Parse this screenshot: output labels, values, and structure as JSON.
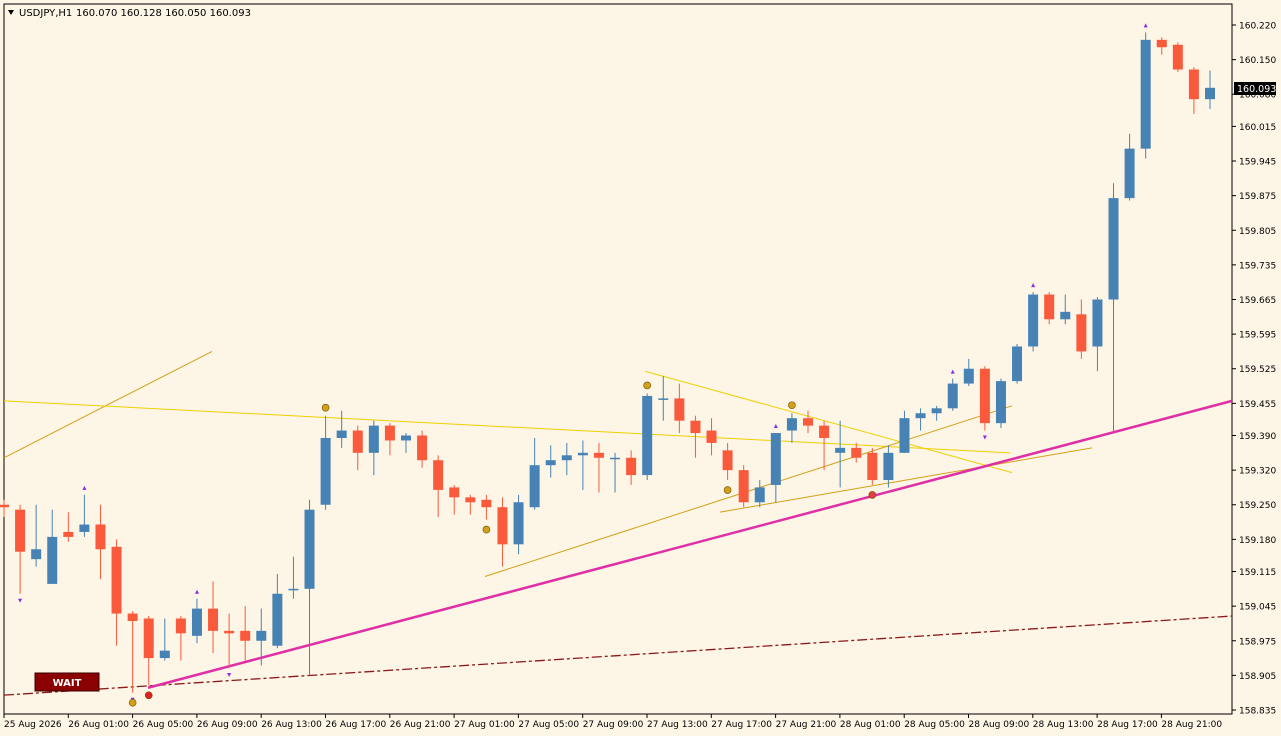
{
  "header": {
    "symbol": "USDJPY,H1",
    "ohlc": "160.070 160.128 160.050 160.093"
  },
  "colors": {
    "background": "#fdf5e6",
    "bull": "#4682b4",
    "bear": "#fa5a3c",
    "wick_bull": "#4682b4",
    "wick_bear": "#fa5a3c",
    "trendline_magenta": "#e02fa6",
    "trendline_gold": "#d4a017",
    "dashed_line": "#8b1a1a",
    "price_tag_bg": "#000000",
    "price_tag_fg": "#ffffff",
    "label_bg": "#8b0000",
    "marker_purple": "#8a2be2"
  },
  "price_tag": "160.093",
  "wait_label": "WAIT",
  "chart_data": {
    "type": "candlestick",
    "title": "USDJPY,H1",
    "timeframe": "H1",
    "ylim": [
      158.835,
      160.22
    ],
    "y_ticks": [
      "160.220",
      "160.150",
      "160.080",
      "160.015",
      "159.945",
      "159.875",
      "159.805",
      "159.735",
      "159.665",
      "159.595",
      "159.525",
      "159.455",
      "159.390",
      "159.320",
      "159.250",
      "159.180",
      "159.115",
      "159.045",
      "158.975",
      "158.905",
      "158.835"
    ],
    "x_tick_labels": [
      "25 Aug 2026",
      "26 Aug 01:00",
      "26 Aug 05:00",
      "26 Aug 09:00",
      "26 Aug 13:00",
      "26 Aug 17:00",
      "26 Aug 21:00",
      "27 Aug 01:00",
      "27 Aug 05:00",
      "27 Aug 09:00",
      "27 Aug 13:00",
      "27 Aug 17:00",
      "27 Aug 21:00",
      "28 Aug 01:00",
      "28 Aug 05:00",
      "28 Aug 09:00",
      "28 Aug 13:00",
      "28 Aug 17:00",
      "28 Aug 21:00"
    ],
    "candles": [
      {
        "o": 159.25,
        "h": 159.26,
        "l": 159.225,
        "c": 159.245
      },
      {
        "o": 159.24,
        "h": 159.25,
        "l": 159.07,
        "c": 159.155
      },
      {
        "o": 159.14,
        "h": 159.25,
        "l": 159.125,
        "c": 159.16
      },
      {
        "o": 159.09,
        "h": 159.24,
        "l": 159.09,
        "c": 159.185
      },
      {
        "o": 159.195,
        "h": 159.235,
        "l": 159.175,
        "c": 159.185
      },
      {
        "o": 159.195,
        "h": 159.27,
        "l": 159.185,
        "c": 159.21
      },
      {
        "o": 159.21,
        "h": 159.25,
        "l": 159.1,
        "c": 159.16
      },
      {
        "o": 159.165,
        "h": 159.18,
        "l": 158.965,
        "c": 159.03
      },
      {
        "o": 159.03,
        "h": 159.035,
        "l": 158.87,
        "c": 159.015
      },
      {
        "o": 159.02,
        "h": 159.025,
        "l": 158.885,
        "c": 158.94
      },
      {
        "o": 158.94,
        "h": 159.02,
        "l": 158.935,
        "c": 158.955
      },
      {
        "o": 159.02,
        "h": 159.025,
        "l": 158.935,
        "c": 158.99
      },
      {
        "o": 158.985,
        "h": 159.06,
        "l": 158.97,
        "c": 159.04
      },
      {
        "o": 159.04,
        "h": 159.095,
        "l": 158.95,
        "c": 158.995
      },
      {
        "o": 158.995,
        "h": 159.03,
        "l": 158.92,
        "c": 158.99
      },
      {
        "o": 158.995,
        "h": 159.045,
        "l": 158.935,
        "c": 158.975
      },
      {
        "o": 158.975,
        "h": 159.04,
        "l": 158.925,
        "c": 158.995
      },
      {
        "o": 158.965,
        "h": 159.11,
        "l": 158.96,
        "c": 159.07
      },
      {
        "o": 159.08,
        "h": 159.145,
        "l": 159.06,
        "c": 159.08
      },
      {
        "o": 159.08,
        "h": 159.26,
        "l": 158.905,
        "c": 159.24
      },
      {
        "o": 159.25,
        "h": 159.43,
        "l": 159.24,
        "c": 159.385
      },
      {
        "o": 159.385,
        "h": 159.44,
        "l": 159.365,
        "c": 159.4
      },
      {
        "o": 159.4,
        "h": 159.41,
        "l": 159.32,
        "c": 159.355
      },
      {
        "o": 159.355,
        "h": 159.42,
        "l": 159.31,
        "c": 159.41
      },
      {
        "o": 159.41,
        "h": 159.415,
        "l": 159.35,
        "c": 159.38
      },
      {
        "o": 159.38,
        "h": 159.395,
        "l": 159.355,
        "c": 159.39
      },
      {
        "o": 159.39,
        "h": 159.4,
        "l": 159.325,
        "c": 159.34
      },
      {
        "o": 159.34,
        "h": 159.35,
        "l": 159.225,
        "c": 159.28
      },
      {
        "o": 159.285,
        "h": 159.29,
        "l": 159.23,
        "c": 159.265
      },
      {
        "o": 159.265,
        "h": 159.27,
        "l": 159.23,
        "c": 159.255
      },
      {
        "o": 159.26,
        "h": 159.27,
        "l": 159.22,
        "c": 159.245
      },
      {
        "o": 159.245,
        "h": 159.265,
        "l": 159.125,
        "c": 159.17
      },
      {
        "o": 159.17,
        "h": 159.27,
        "l": 159.15,
        "c": 159.255
      },
      {
        "o": 159.245,
        "h": 159.385,
        "l": 159.24,
        "c": 159.33
      },
      {
        "o": 159.33,
        "h": 159.37,
        "l": 159.305,
        "c": 159.34
      },
      {
        "o": 159.34,
        "h": 159.375,
        "l": 159.31,
        "c": 159.35
      },
      {
        "o": 159.35,
        "h": 159.38,
        "l": 159.28,
        "c": 159.355
      },
      {
        "o": 159.355,
        "h": 159.375,
        "l": 159.275,
        "c": 159.345
      },
      {
        "o": 159.345,
        "h": 159.355,
        "l": 159.275,
        "c": 159.345
      },
      {
        "o": 159.345,
        "h": 159.36,
        "l": 159.29,
        "c": 159.31
      },
      {
        "o": 159.31,
        "h": 159.475,
        "l": 159.3,
        "c": 159.47
      },
      {
        "o": 159.465,
        "h": 159.51,
        "l": 159.42,
        "c": 159.465
      },
      {
        "o": 159.465,
        "h": 159.495,
        "l": 159.395,
        "c": 159.42
      },
      {
        "o": 159.42,
        "h": 159.43,
        "l": 159.345,
        "c": 159.395
      },
      {
        "o": 159.4,
        "h": 159.425,
        "l": 159.35,
        "c": 159.375
      },
      {
        "o": 159.36,
        "h": 159.375,
        "l": 159.3,
        "c": 159.32
      },
      {
        "o": 159.32,
        "h": 159.33,
        "l": 159.245,
        "c": 159.255
      },
      {
        "o": 159.255,
        "h": 159.3,
        "l": 159.245,
        "c": 159.285
      },
      {
        "o": 159.29,
        "h": 159.395,
        "l": 159.255,
        "c": 159.395
      },
      {
        "o": 159.4,
        "h": 159.435,
        "l": 159.375,
        "c": 159.425
      },
      {
        "o": 159.425,
        "h": 159.44,
        "l": 159.395,
        "c": 159.41
      },
      {
        "o": 159.41,
        "h": 159.42,
        "l": 159.32,
        "c": 159.385
      },
      {
        "o": 159.355,
        "h": 159.42,
        "l": 159.285,
        "c": 159.365
      },
      {
        "o": 159.365,
        "h": 159.375,
        "l": 159.335,
        "c": 159.345
      },
      {
        "o": 159.355,
        "h": 159.365,
        "l": 159.29,
        "c": 159.3
      },
      {
        "o": 159.3,
        "h": 159.37,
        "l": 159.285,
        "c": 159.355
      },
      {
        "o": 159.355,
        "h": 159.44,
        "l": 159.355,
        "c": 159.425
      },
      {
        "o": 159.425,
        "h": 159.445,
        "l": 159.4,
        "c": 159.435
      },
      {
        "o": 159.435,
        "h": 159.45,
        "l": 159.42,
        "c": 159.445
      },
      {
        "o": 159.445,
        "h": 159.505,
        "l": 159.44,
        "c": 159.495
      },
      {
        "o": 159.495,
        "h": 159.545,
        "l": 159.49,
        "c": 159.525
      },
      {
        "o": 159.525,
        "h": 159.53,
        "l": 159.4,
        "c": 159.415
      },
      {
        "o": 159.415,
        "h": 159.505,
        "l": 159.405,
        "c": 159.5
      },
      {
        "o": 159.5,
        "h": 159.575,
        "l": 159.495,
        "c": 159.57
      },
      {
        "o": 159.57,
        "h": 159.68,
        "l": 159.56,
        "c": 159.675
      },
      {
        "o": 159.675,
        "h": 159.68,
        "l": 159.615,
        "c": 159.625
      },
      {
        "o": 159.625,
        "h": 159.675,
        "l": 159.615,
        "c": 159.64
      },
      {
        "o": 159.635,
        "h": 159.665,
        "l": 159.545,
        "c": 159.56
      },
      {
        "o": 159.57,
        "h": 159.67,
        "l": 159.52,
        "c": 159.665
      },
      {
        "o": 159.665,
        "h": 159.9,
        "l": 159.395,
        "c": 159.87
      },
      {
        "o": 159.87,
        "h": 160.0,
        "l": 159.865,
        "c": 159.97
      },
      {
        "o": 159.97,
        "h": 160.205,
        "l": 159.95,
        "c": 160.19
      },
      {
        "o": 160.19,
        "h": 160.195,
        "l": 160.16,
        "c": 160.175
      },
      {
        "o": 160.18,
        "h": 160.185,
        "l": 160.125,
        "c": 160.13
      },
      {
        "o": 160.13,
        "h": 160.135,
        "l": 160.04,
        "c": 160.07
      },
      {
        "o": 160.07,
        "h": 160.128,
        "l": 160.05,
        "c": 160.093
      }
    ]
  }
}
